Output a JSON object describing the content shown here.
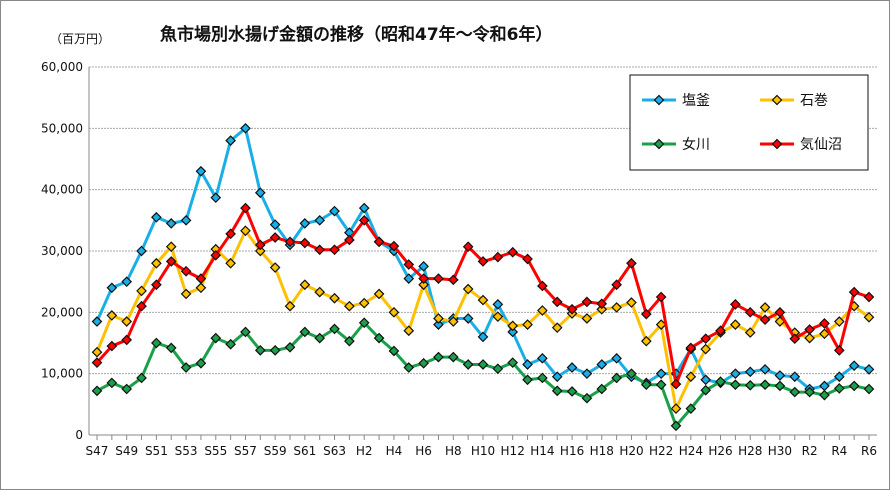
{
  "chart_data": {
    "type": "line",
    "title": "魚市場別水揚げ金額の推移（昭和47年～令和6年）",
    "unit": "（百万円）",
    "ylim": [
      0,
      60000
    ],
    "yticks": [
      "0",
      "10,000",
      "20,000",
      "30,000",
      "40,000",
      "50,000",
      "60,000"
    ],
    "grid": true,
    "legend": "top-right",
    "categories": [
      "S47",
      "S48",
      "S49",
      "S50",
      "S51",
      "S52",
      "S53",
      "S54",
      "S55",
      "S56",
      "S57",
      "S58",
      "S59",
      "S60",
      "S61",
      "S62",
      "S63",
      "H1",
      "H2",
      "H3",
      "H4",
      "H5",
      "H6",
      "H7",
      "H8",
      "H9",
      "H10",
      "H11",
      "H12",
      "H13",
      "H14",
      "H15",
      "H16",
      "H17",
      "H18",
      "H19",
      "H20",
      "H21",
      "H22",
      "H23",
      "H24",
      "H25",
      "H26",
      "H27",
      "H28",
      "H29",
      "H30",
      "R1",
      "R2",
      "R3",
      "R4",
      "R5",
      "R6"
    ],
    "xticklabels": [
      "S47",
      "S49",
      "S51",
      "S53",
      "S55",
      "S57",
      "S59",
      "S61",
      "S63",
      "H2",
      "H4",
      "H6",
      "H8",
      "H10",
      "H12",
      "H14",
      "H16",
      "H18",
      "H20",
      "H22",
      "H24",
      "H26",
      "H28",
      "H30",
      "R2",
      "R4",
      "R6"
    ],
    "series": [
      {
        "name": "塩釜",
        "color": "#1aaee8",
        "values": [
          18500,
          24000,
          25000,
          30000,
          35500,
          34500,
          35000,
          43000,
          38700,
          48000,
          50000,
          39500,
          34300,
          31000,
          34500,
          35000,
          36500,
          33000,
          37000,
          31500,
          30000,
          25500,
          27500,
          18000,
          19000,
          19000,
          16000,
          21300,
          16800,
          11500,
          12500,
          9500,
          11000,
          10000,
          11500,
          12500,
          9500,
          8500,
          10000,
          10000,
          14000,
          9000,
          8500,
          10000,
          10300,
          10700,
          9700,
          9500,
          7500,
          8000,
          9500,
          11300,
          10700
        ]
      },
      {
        "name": "石巻",
        "color": "#ffc000",
        "values": [
          13500,
          19500,
          18500,
          23500,
          28000,
          30700,
          23000,
          24000,
          30300,
          28000,
          33300,
          30000,
          27300,
          21000,
          24500,
          23300,
          22300,
          21000,
          21500,
          23000,
          20000,
          17000,
          24500,
          19000,
          18500,
          23800,
          22000,
          19300,
          17800,
          18000,
          20300,
          17500,
          19800,
          19000,
          20500,
          20800,
          21600,
          15300,
          18000,
          4300,
          9500,
          14000,
          16700,
          18000,
          16700,
          20800,
          18500,
          16700,
          15800,
          16500,
          18500,
          21000,
          19200
        ]
      },
      {
        "name": "女川",
        "color": "#1aa04a",
        "values": [
          7200,
          8500,
          7500,
          9300,
          15000,
          14200,
          11000,
          11700,
          15800,
          14800,
          16800,
          13800,
          13800,
          14300,
          16800,
          15800,
          17300,
          15300,
          18300,
          15800,
          13700,
          11000,
          11700,
          12700,
          12700,
          11500,
          11500,
          10800,
          11800,
          9000,
          9300,
          7200,
          7100,
          6000,
          7500,
          9300,
          10000,
          8200,
          8200,
          1500,
          4300,
          7300,
          8700,
          8200,
          8100,
          8200,
          8000,
          7000,
          7000,
          6500,
          7600,
          8000,
          7500
        ]
      },
      {
        "name": "気仙沼",
        "color": "#ff0000",
        "values": [
          11800,
          14500,
          15500,
          21000,
          24500,
          28300,
          26700,
          25500,
          29300,
          32800,
          37000,
          31000,
          32200,
          31500,
          31300,
          30200,
          30200,
          31800,
          35000,
          31500,
          30800,
          27800,
          25500,
          25500,
          25300,
          30700,
          28300,
          29000,
          29800,
          28700,
          24300,
          21700,
          20500,
          21700,
          21400,
          24500,
          28000,
          19700,
          22500,
          8300,
          14200,
          15700,
          17000,
          21300,
          20000,
          18800,
          20000,
          15700,
          17200,
          18200,
          13800,
          23300,
          22500
        ]
      }
    ]
  }
}
